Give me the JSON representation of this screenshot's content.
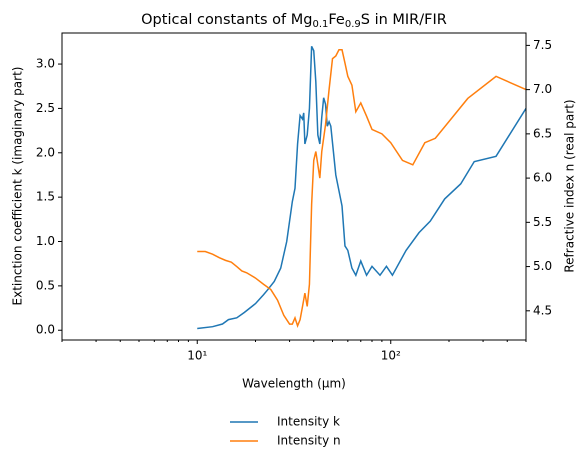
{
  "chart_data": {
    "type": "line",
    "title": [
      "Optical constants of Mg",
      "0.1",
      "Fe",
      "0.9",
      "S in MIR/FIR"
    ],
    "xlabel": "Wavelength (μm)",
    "ylabel": "Extinction coefficient k (imaginary part)",
    "y2label": "Refractive index n (real part)",
    "xscale": "log",
    "xlim": [
      2,
      500
    ],
    "xticks": [
      {
        "value": 10,
        "label": "10¹"
      },
      {
        "value": 100,
        "label": "10²"
      }
    ],
    "xminorticks": [
      2,
      3,
      4,
      5,
      6,
      7,
      8,
      9,
      20,
      30,
      40,
      50,
      60,
      70,
      80,
      90,
      200,
      300,
      400,
      500
    ],
    "ylim": [
      -0.11,
      3.35
    ],
    "yticks": [
      {
        "value": 0,
        "label": "0.0"
      },
      0.5,
      {
        "value": 1,
        "label": "1.0"
      },
      1.5,
      {
        "value": 2,
        "label": "2.0"
      },
      2.5,
      {
        "value": 3,
        "label": "3.0"
      }
    ],
    "y2lim": [
      4.17,
      7.64
    ],
    "y2ticks": [
      4.5,
      {
        "value": 5,
        "label": "5.0"
      },
      5.5,
      {
        "value": 6,
        "label": "6.0"
      },
      6.5,
      {
        "value": 7,
        "label": "7.0"
      },
      7.5
    ],
    "legend": "bottom",
    "series": [
      {
        "name": "Intensity k",
        "color": "#1f77b4",
        "x": [
          10,
          12,
          13.5,
          14.5,
          16,
          17.5,
          20,
          22,
          23,
          25,
          27,
          29,
          31,
          32,
          33,
          34,
          35,
          35.5,
          36,
          37,
          38,
          39,
          40,
          41,
          42,
          43,
          44,
          45,
          46,
          47,
          48,
          49,
          52,
          56,
          58,
          60,
          63,
          66,
          70,
          75,
          80,
          88,
          95,
          102,
          120,
          140,
          160,
          190,
          230,
          270,
          350,
          500
        ],
        "values": [
          0.02,
          0.04,
          0.07,
          0.12,
          0.14,
          0.2,
          0.3,
          0.4,
          0.45,
          0.55,
          0.7,
          1.0,
          1.45,
          1.6,
          2.1,
          2.42,
          2.38,
          2.45,
          2.1,
          2.2,
          2.5,
          3.2,
          3.15,
          2.8,
          2.2,
          2.1,
          2.4,
          2.62,
          2.55,
          2.3,
          2.35,
          2.3,
          1.75,
          1.4,
          0.95,
          0.9,
          0.7,
          0.62,
          0.78,
          0.62,
          0.72,
          0.62,
          0.72,
          0.62,
          0.9,
          1.1,
          1.23,
          1.48,
          1.65,
          1.9,
          1.96,
          2.5
        ]
      },
      {
        "name": "Intensity n",
        "color": "#ff7f0e",
        "axis": "y2",
        "x": [
          10,
          11,
          12,
          13,
          14,
          15,
          16,
          17,
          18,
          20,
          22,
          24,
          26,
          28,
          30,
          31,
          32,
          33,
          34,
          35,
          36,
          37,
          38,
          39,
          40,
          41,
          42,
          43,
          44,
          46,
          48,
          50,
          52,
          54,
          56,
          58,
          60,
          63,
          66,
          70,
          75,
          80,
          90,
          100,
          115,
          130,
          150,
          170,
          250,
          350,
          500
        ],
        "values": [
          5.17,
          5.17,
          5.14,
          5.1,
          5.07,
          5.05,
          5.0,
          4.95,
          4.93,
          4.87,
          4.8,
          4.74,
          4.62,
          4.45,
          4.35,
          4.35,
          4.42,
          4.33,
          4.4,
          4.55,
          4.7,
          4.55,
          4.8,
          5.7,
          6.2,
          6.3,
          6.15,
          6.0,
          6.3,
          6.6,
          7.0,
          7.35,
          7.38,
          7.45,
          7.45,
          7.3,
          7.15,
          7.05,
          6.75,
          6.85,
          6.7,
          6.55,
          6.5,
          6.4,
          6.2,
          6.15,
          6.4,
          6.45,
          6.9,
          7.15,
          7.0
        ]
      }
    ]
  }
}
